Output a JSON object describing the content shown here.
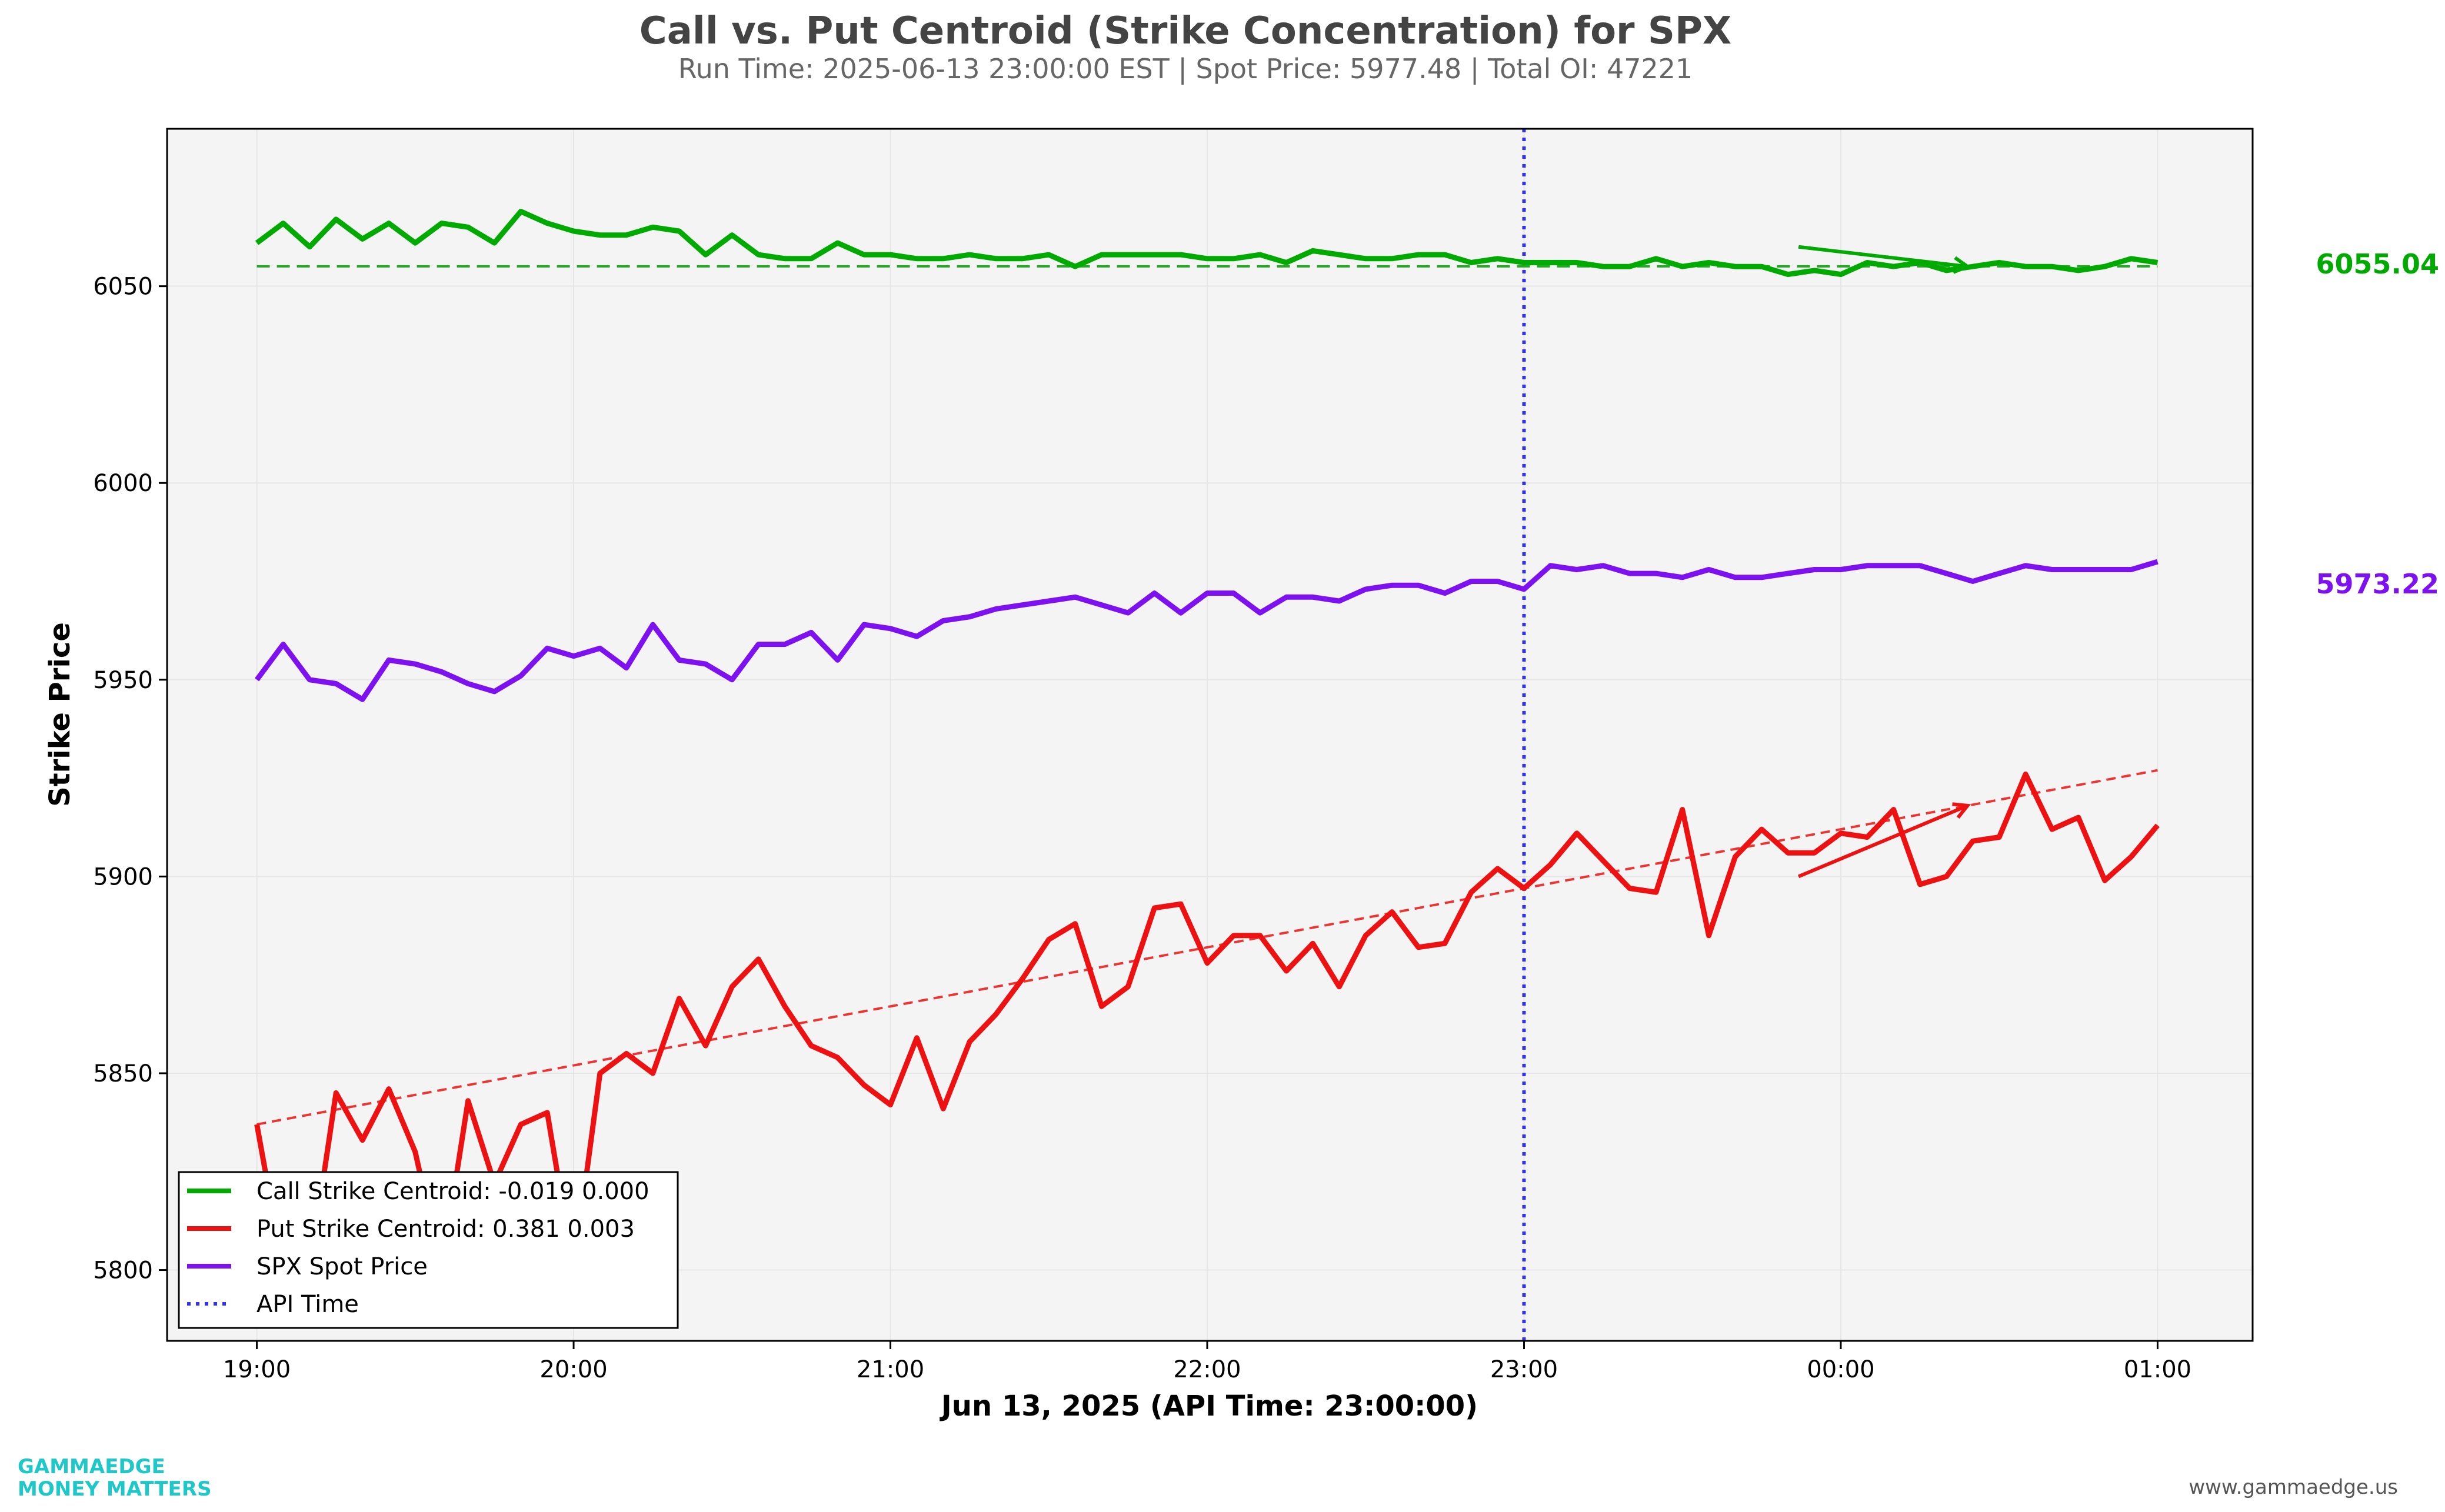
{
  "chart_data": {
    "type": "line",
    "title": "Call vs. Put Centroid (Strike Concentration) for SPX",
    "subtitle": "Run Time: 2025-06-13 23:00:00 EST | Spot Price: 5977.48 | Total OI: 47221",
    "xlabel": "Jun 13, 2025 (API Time: 23:00:00)",
    "ylabel": "Strike Price",
    "x_ticks": [
      "19:00",
      "20:00",
      "21:00",
      "22:00",
      "23:00",
      "00:00",
      "01:00"
    ],
    "y_ticks": [
      5800,
      5850,
      5900,
      5950,
      6000,
      6050
    ],
    "xlim_minutes": [
      -17,
      378
    ],
    "ylim": [
      5782,
      6090
    ],
    "grid": true,
    "legend_position": "lower-left",
    "x_minutes": [
      0,
      5,
      10,
      15,
      20,
      25,
      30,
      35,
      40,
      45,
      50,
      55,
      60,
      65,
      70,
      75,
      80,
      85,
      90,
      95,
      100,
      105,
      110,
      115,
      120,
      125,
      130,
      135,
      140,
      145,
      150,
      155,
      160,
      165,
      170,
      175,
      180,
      185,
      190,
      195,
      200,
      205,
      210,
      215,
      220,
      225,
      230,
      235,
      240,
      245,
      250,
      255,
      260,
      265,
      270,
      275,
      280,
      285,
      290,
      295,
      300,
      305,
      310,
      315,
      320,
      325,
      330,
      335,
      340,
      345,
      350,
      355,
      360
    ],
    "series": [
      {
        "name": "Call Strike Centroid: -0.019 0.000",
        "color": "#00aa00",
        "values": [
          6061,
          6066,
          6060,
          6067,
          6062,
          6066,
          6061,
          6066,
          6065,
          6061,
          6069,
          6066,
          6064,
          6063,
          6063,
          6065,
          6064,
          6058,
          6063,
          6058,
          6057,
          6057,
          6061,
          6058,
          6058,
          6057,
          6057,
          6058,
          6057,
          6057,
          6058,
          6055,
          6058,
          6058,
          6058,
          6058,
          6057,
          6057,
          6058,
          6056,
          6059,
          6058,
          6057,
          6057,
          6058,
          6058,
          6056,
          6057,
          6056,
          6056,
          6056,
          6055,
          6055,
          6057,
          6055,
          6056,
          6055,
          6055,
          6053,
          6054,
          6053,
          6056,
          6055,
          6056,
          6054,
          6055,
          6056,
          6055,
          6055,
          6054,
          6055,
          6057,
          6056
        ]
      },
      {
        "name": "Put Strike Centroid: 0.381 0.003",
        "color": "#ee1111",
        "values": [
          5837,
          5800,
          5800,
          5845,
          5833,
          5846,
          5830,
          5800,
          5843,
          5822,
          5837,
          5840,
          5800,
          5850,
          5855,
          5850,
          5869,
          5857,
          5872,
          5879,
          5867,
          5857,
          5854,
          5847,
          5842,
          5859,
          5841,
          5858,
          5865,
          5874,
          5884,
          5888,
          5867,
          5872,
          5892,
          5893,
          5878,
          5885,
          5885,
          5876,
          5883,
          5872,
          5885,
          5891,
          5882,
          5883,
          5896,
          5902,
          5897,
          5903,
          5911,
          5904,
          5897,
          5896,
          5917,
          5885,
          5905,
          5912,
          5906,
          5906,
          5911,
          5910,
          5917,
          5898,
          5900,
          5909,
          5910,
          5926,
          5912,
          5915,
          5899,
          5905,
          5913
        ]
      },
      {
        "name": "SPX Spot Price",
        "color": "#7e11f0",
        "values": [
          5950,
          5959,
          5950,
          5949,
          5945,
          5955,
          5954,
          5952,
          5949,
          5947,
          5951,
          5958,
          5956,
          5958,
          5953,
          5964,
          5955,
          5954,
          5950,
          5959,
          5959,
          5962,
          5955,
          5964,
          5963,
          5961,
          5965,
          5966,
          5968,
          5969,
          5970,
          5971,
          5969,
          5967,
          5972,
          5967,
          5972,
          5972,
          5967,
          5971,
          5971,
          5970,
          5973,
          5974,
          5974,
          5972,
          5975,
          5975,
          5973,
          5979,
          5978,
          5979,
          5977,
          5977,
          5976,
          5978,
          5976,
          5976,
          5977,
          5978,
          5978,
          5979,
          5979,
          5979,
          5977,
          5975,
          5977,
          5979,
          5978,
          5978,
          5978,
          5978,
          5980
        ]
      }
    ],
    "reference_lines": {
      "call_mean": 6055.04,
      "call_mean_label": "6055.04",
      "spot_label": "5973.22",
      "put_trend": [
        5837,
        5927
      ],
      "api_time_minutes": 240
    },
    "arrows": {
      "call": [
        [
          292,
          6060
        ],
        [
          324,
          6055
        ]
      ],
      "put": [
        [
          292,
          5900
        ],
        [
          324,
          5918
        ]
      ]
    },
    "legend": [
      {
        "label": "Call Strike Centroid: -0.019 0.000",
        "color": "#00aa00",
        "style": "solid"
      },
      {
        "label": "Put Strike Centroid: 0.381 0.003",
        "color": "#ee1111",
        "style": "solid"
      },
      {
        "label": "SPX Spot Price",
        "color": "#7e11f0",
        "style": "solid"
      },
      {
        "label": "API Time",
        "color": "#3333ee",
        "style": "dotted"
      }
    ],
    "colors": {
      "api_time": "#3333ee",
      "call_mean": "#22aa22",
      "put_trend": "#ee3333"
    }
  },
  "branding": {
    "line1": "GAMMAEDGE",
    "line2": "MONEY MATTERS",
    "url": "www.gammaedge.us"
  }
}
